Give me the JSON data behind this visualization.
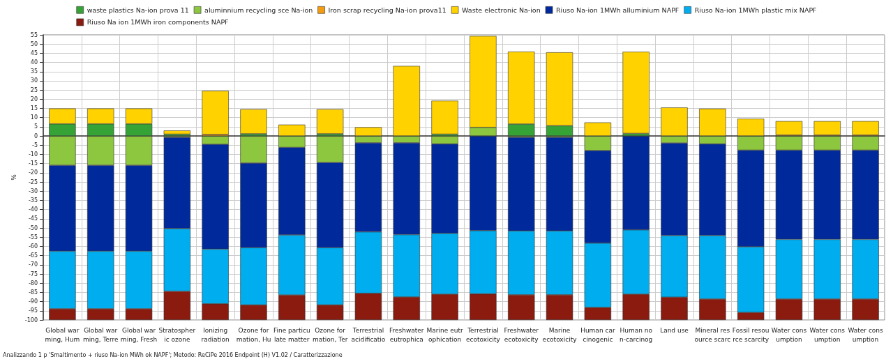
{
  "chart_data": {
    "type": "bar",
    "stacked": true,
    "ylabel": "%",
    "legend": "top",
    "grid": true,
    "categories": [
      "Global war\nming, Hum",
      "Global war\nming, Terre",
      "Global war\nming, Fresh",
      "Stratospher\nic ozone",
      "Ionizing\nradiation",
      "Ozone for\nmation, Hu",
      "Fine particu\nlate matter",
      "Ozone for\nmation, Ter",
      "Terrestrial\nacidificatio",
      "Freshwater\neutrophica",
      "Marine eutr\nophication",
      "Terrestrial\necotoxicity",
      "Freshwater\necotoxicity",
      "Marine\necotoxicity",
      "Human car\ncinogenic",
      "Human no\nn-carcinog",
      "Land use",
      "Mineral res\nource scarc",
      "Fossil resou\nrce scarcity",
      "Water cons\numption",
      "Water cons\numption",
      "Water cons\numption"
    ],
    "ylim": [
      -100,
      55
    ],
    "yticks": [
      -100,
      -95,
      -90,
      -85,
      -80,
      -75,
      -70,
      -65,
      -60,
      -55,
      -50,
      -45,
      -40,
      -35,
      -30,
      -25,
      -20,
      -15,
      -10,
      -5,
      0,
      5,
      10,
      15,
      20,
      25,
      30,
      35,
      40,
      45,
      50,
      55
    ],
    "series": [
      {
        "name": "waste plastics Na-ion prova 11",
        "color": "#36a336",
        "values": [
          6.6,
          6.6,
          6.6,
          1.0,
          null,
          1.2,
          null,
          1.2,
          null,
          null,
          1.0,
          null,
          6.5,
          5.6,
          null,
          1.4,
          null,
          null,
          null,
          null,
          null,
          null
        ]
      },
      {
        "name": "aluminnium recycling sce Na-ion",
        "color": "#8dc63f",
        "values": [
          -15.9,
          -15.9,
          -15.9,
          -0.7,
          -4.5,
          -14.7,
          -6.2,
          -14.4,
          -3.7,
          -3.7,
          -4.3,
          4.7,
          -0.7,
          -0.7,
          -7.9,
          null,
          -3.8,
          -4.3,
          -7.7,
          -7.7,
          -7.7,
          -7.7
        ]
      },
      {
        "name": "Iron scrap recycling Na-ion prova11",
        "color": "#f39c12",
        "values": [
          null,
          null,
          null,
          null,
          0.9,
          null,
          null,
          null,
          null,
          null,
          null,
          null,
          null,
          null,
          null,
          null,
          null,
          null,
          null,
          0.5,
          0.5,
          0.5
        ]
      },
      {
        "name": "Waste electronic Na-ion",
        "color": "#ffd200",
        "values": [
          8.4,
          8.4,
          8.4,
          2.0,
          23.7,
          13.4,
          6.2,
          13.4,
          4.8,
          38.1,
          18.2,
          49.7,
          39.4,
          39.9,
          7.4,
          44.4,
          15.5,
          14.9,
          9.4,
          7.6,
          7.6,
          7.6
        ]
      },
      {
        "name": "Riuso Na-ion 1MWh alluminium NAPF",
        "color": "#002a9c",
        "values": [
          -46.7,
          -46.7,
          -46.7,
          -49.6,
          -57.0,
          -46.0,
          -47.6,
          -46.3,
          -48.4,
          -49.9,
          -48.6,
          -51.4,
          -50.9,
          -50.9,
          -50.3,
          -51.0,
          -50.3,
          -49.8,
          -52.5,
          -48.5,
          -48.5,
          -48.5
        ]
      },
      {
        "name": "Riuso Na-ion 1MWh plastic mix NAPF",
        "color": "#00aeef",
        "values": [
          -31.3,
          -31.3,
          -31.3,
          -34.1,
          -29.7,
          -31.1,
          -32.6,
          -31.1,
          -33.4,
          -33.9,
          -33.1,
          -34.4,
          -34.7,
          -34.7,
          -35.0,
          -35.0,
          -33.5,
          -34.5,
          -35.7,
          -32.4,
          -32.4,
          -32.4
        ]
      },
      {
        "name": "Riuso Na ion 1MWh iron components NAPF",
        "color": "#8b1a0f",
        "values": [
          -6.1,
          -6.1,
          -6.1,
          -15.6,
          -8.8,
          -8.2,
          -13.6,
          -8.2,
          -14.5,
          -12.5,
          -14.0,
          -14.2,
          -13.7,
          -13.7,
          -6.8,
          -14.0,
          -12.4,
          -11.4,
          -4.1,
          -11.4,
          -11.4,
          -11.4
        ]
      }
    ],
    "annotations": [
      "Analizzando 1 p 'Smaltimento + riuso Na-ion MWh ok NAPF'; Metodo: ReCiPe 2016 Endpoint (H) V1.02 / Caratterizzazione"
    ]
  }
}
